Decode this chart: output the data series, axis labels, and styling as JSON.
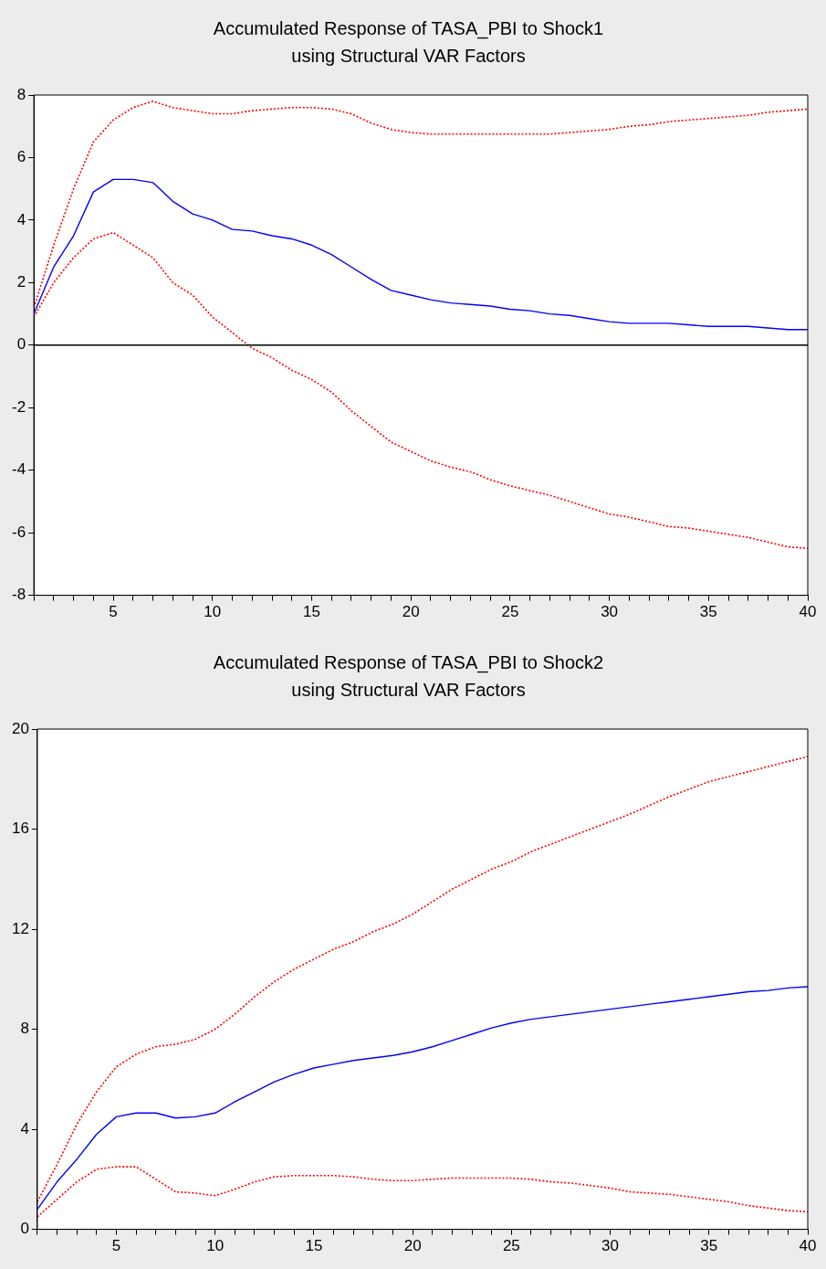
{
  "chart_data": [
    {
      "type": "line",
      "title": "Accumulated Response of TASA_PBI to Shock1",
      "subtitle": "using Structural VAR Factors",
      "x": [
        1,
        2,
        3,
        4,
        5,
        6,
        7,
        8,
        9,
        10,
        11,
        12,
        13,
        14,
        15,
        16,
        17,
        18,
        19,
        20,
        21,
        22,
        23,
        24,
        25,
        26,
        27,
        28,
        29,
        30,
        31,
        32,
        33,
        34,
        35,
        36,
        37,
        38,
        39,
        40
      ],
      "series": [
        {
          "color": "#0000ff",
          "line_style": "solid",
          "values": [
            1.0,
            2.5,
            3.5,
            4.9,
            5.3,
            5.3,
            5.2,
            4.6,
            4.2,
            4.0,
            3.7,
            3.65,
            3.5,
            3.4,
            3.2,
            2.9,
            2.5,
            2.1,
            1.75,
            1.6,
            1.45,
            1.35,
            1.3,
            1.25,
            1.15,
            1.1,
            1.0,
            0.95,
            0.85,
            0.75,
            0.7,
            0.7,
            0.7,
            0.65,
            0.6,
            0.6,
            0.6,
            0.55,
            0.5,
            0.5
          ]
        },
        {
          "color": "#ff0000",
          "line_style": "dotted",
          "values": [
            1.2,
            3.2,
            5.0,
            6.5,
            7.2,
            7.6,
            7.8,
            7.6,
            7.5,
            7.4,
            7.4,
            7.5,
            7.55,
            7.6,
            7.6,
            7.55,
            7.4,
            7.1,
            6.9,
            6.8,
            6.75,
            6.75,
            6.75,
            6.75,
            6.75,
            6.75,
            6.75,
            6.8,
            6.85,
            6.9,
            7.0,
            7.05,
            7.15,
            7.2,
            7.25,
            7.3,
            7.35,
            7.45,
            7.5,
            7.55
          ]
        },
        {
          "color": "#ff0000",
          "line_style": "dotted",
          "values": [
            0.9,
            2.0,
            2.8,
            3.4,
            3.6,
            3.2,
            2.8,
            2.0,
            1.6,
            0.9,
            0.4,
            -0.1,
            -0.4,
            -0.8,
            -1.1,
            -1.5,
            -2.1,
            -2.6,
            -3.1,
            -3.4,
            -3.7,
            -3.9,
            -4.05,
            -4.3,
            -4.5,
            -4.65,
            -4.8,
            -5.0,
            -5.2,
            -5.4,
            -5.5,
            -5.65,
            -5.8,
            -5.85,
            -5.95,
            -6.05,
            -6.15,
            -6.3,
            -6.45,
            -6.5
          ]
        }
      ],
      "xlim": [
        1,
        40
      ],
      "xticks": [
        {
          "value": 1,
          "label": null
        },
        {
          "value": 2,
          "label": null
        },
        {
          "value": 3,
          "label": null
        },
        {
          "value": 4,
          "label": null
        },
        5,
        {
          "value": 6,
          "label": null
        },
        {
          "value": 7,
          "label": null
        },
        {
          "value": 8,
          "label": null
        },
        {
          "value": 9,
          "label": null
        },
        10,
        {
          "value": 11,
          "label": null
        },
        {
          "value": 12,
          "label": null
        },
        {
          "value": 13,
          "label": null
        },
        {
          "value": 14,
          "label": null
        },
        15,
        {
          "value": 16,
          "label": null
        },
        {
          "value": 17,
          "label": null
        },
        {
          "value": 18,
          "label": null
        },
        {
          "value": 19,
          "label": null
        },
        20,
        {
          "value": 21,
          "label": null
        },
        {
          "value": 22,
          "label": null
        },
        {
          "value": 23,
          "label": null
        },
        {
          "value": 24,
          "label": null
        },
        25,
        {
          "value": 26,
          "label": null
        },
        {
          "value": 27,
          "label": null
        },
        {
          "value": 28,
          "label": null
        },
        {
          "value": 29,
          "label": null
        },
        30,
        {
          "value": 31,
          "label": null
        },
        {
          "value": 32,
          "label": null
        },
        {
          "value": 33,
          "label": null
        },
        {
          "value": 34,
          "label": null
        },
        35,
        {
          "value": 36,
          "label": null
        },
        {
          "value": 37,
          "label": null
        },
        {
          "value": 38,
          "label": null
        },
        {
          "value": 39,
          "label": null
        },
        40
      ],
      "ylim": [
        -8,
        8
      ],
      "yticks": [
        -8,
        -6,
        -4,
        -2,
        0,
        2,
        4,
        6,
        8
      ],
      "ref_lines": [
        {
          "axis": "y",
          "value": 0,
          "color": "#000000"
        }
      ],
      "grid": false,
      "legend": false
    },
    {
      "type": "line",
      "title": "Accumulated Response of TASA_PBI to Shock2",
      "subtitle": "using Structural VAR Factors",
      "x": [
        1,
        2,
        3,
        4,
        5,
        6,
        7,
        8,
        9,
        10,
        11,
        12,
        13,
        14,
        15,
        16,
        17,
        18,
        19,
        20,
        21,
        22,
        23,
        24,
        25,
        26,
        27,
        28,
        29,
        30,
        31,
        32,
        33,
        34,
        35,
        36,
        37,
        38,
        39,
        40
      ],
      "series": [
        {
          "color": "#0000ff",
          "line_style": "solid",
          "values": [
            0.8,
            1.9,
            2.8,
            3.8,
            4.5,
            4.65,
            4.65,
            4.45,
            4.5,
            4.65,
            5.1,
            5.5,
            5.9,
            6.2,
            6.45,
            6.6,
            6.75,
            6.85,
            6.95,
            7.1,
            7.3,
            7.55,
            7.8,
            8.05,
            8.25,
            8.4,
            8.5,
            8.6,
            8.7,
            8.8,
            8.9,
            9.0,
            9.1,
            9.2,
            9.3,
            9.4,
            9.5,
            9.55,
            9.65,
            9.7
          ]
        },
        {
          "color": "#ff0000",
          "line_style": "dotted",
          "values": [
            1.1,
            2.6,
            4.2,
            5.5,
            6.5,
            7.0,
            7.3,
            7.4,
            7.6,
            8.0,
            8.6,
            9.3,
            9.9,
            10.4,
            10.8,
            11.2,
            11.5,
            11.9,
            12.2,
            12.6,
            13.1,
            13.6,
            14.0,
            14.4,
            14.7,
            15.1,
            15.4,
            15.7,
            16.0,
            16.3,
            16.6,
            16.95,
            17.3,
            17.6,
            17.9,
            18.1,
            18.3,
            18.5,
            18.7,
            18.9
          ]
        },
        {
          "color": "#ff0000",
          "line_style": "dotted",
          "values": [
            0.5,
            1.2,
            1.9,
            2.4,
            2.5,
            2.5,
            2.0,
            1.5,
            1.45,
            1.35,
            1.6,
            1.9,
            2.1,
            2.15,
            2.15,
            2.15,
            2.1,
            2.0,
            1.95,
            1.95,
            2.0,
            2.05,
            2.05,
            2.05,
            2.05,
            2.0,
            1.9,
            1.85,
            1.75,
            1.65,
            1.5,
            1.45,
            1.4,
            1.3,
            1.2,
            1.1,
            0.95,
            0.85,
            0.75,
            0.7
          ]
        }
      ],
      "xlim": [
        1,
        40
      ],
      "xticks": [
        {
          "value": 1,
          "label": null
        },
        {
          "value": 2,
          "label": null
        },
        {
          "value": 3,
          "label": null
        },
        {
          "value": 4,
          "label": null
        },
        5,
        {
          "value": 6,
          "label": null
        },
        {
          "value": 7,
          "label": null
        },
        {
          "value": 8,
          "label": null
        },
        {
          "value": 9,
          "label": null
        },
        10,
        {
          "value": 11,
          "label": null
        },
        {
          "value": 12,
          "label": null
        },
        {
          "value": 13,
          "label": null
        },
        {
          "value": 14,
          "label": null
        },
        15,
        {
          "value": 16,
          "label": null
        },
        {
          "value": 17,
          "label": null
        },
        {
          "value": 18,
          "label": null
        },
        {
          "value": 19,
          "label": null
        },
        20,
        {
          "value": 21,
          "label": null
        },
        {
          "value": 22,
          "label": null
        },
        {
          "value": 23,
          "label": null
        },
        {
          "value": 24,
          "label": null
        },
        25,
        {
          "value": 26,
          "label": null
        },
        {
          "value": 27,
          "label": null
        },
        {
          "value": 28,
          "label": null
        },
        {
          "value": 29,
          "label": null
        },
        30,
        {
          "value": 31,
          "label": null
        },
        {
          "value": 32,
          "label": null
        },
        {
          "value": 33,
          "label": null
        },
        {
          "value": 34,
          "label": null
        },
        35,
        {
          "value": 36,
          "label": null
        },
        {
          "value": 37,
          "label": null
        },
        {
          "value": 38,
          "label": null
        },
        {
          "value": 39,
          "label": null
        },
        40
      ],
      "ylim": [
        0,
        20
      ],
      "yticks": [
        0,
        4,
        8,
        12,
        16,
        20
      ],
      "grid": false,
      "legend": false
    }
  ]
}
